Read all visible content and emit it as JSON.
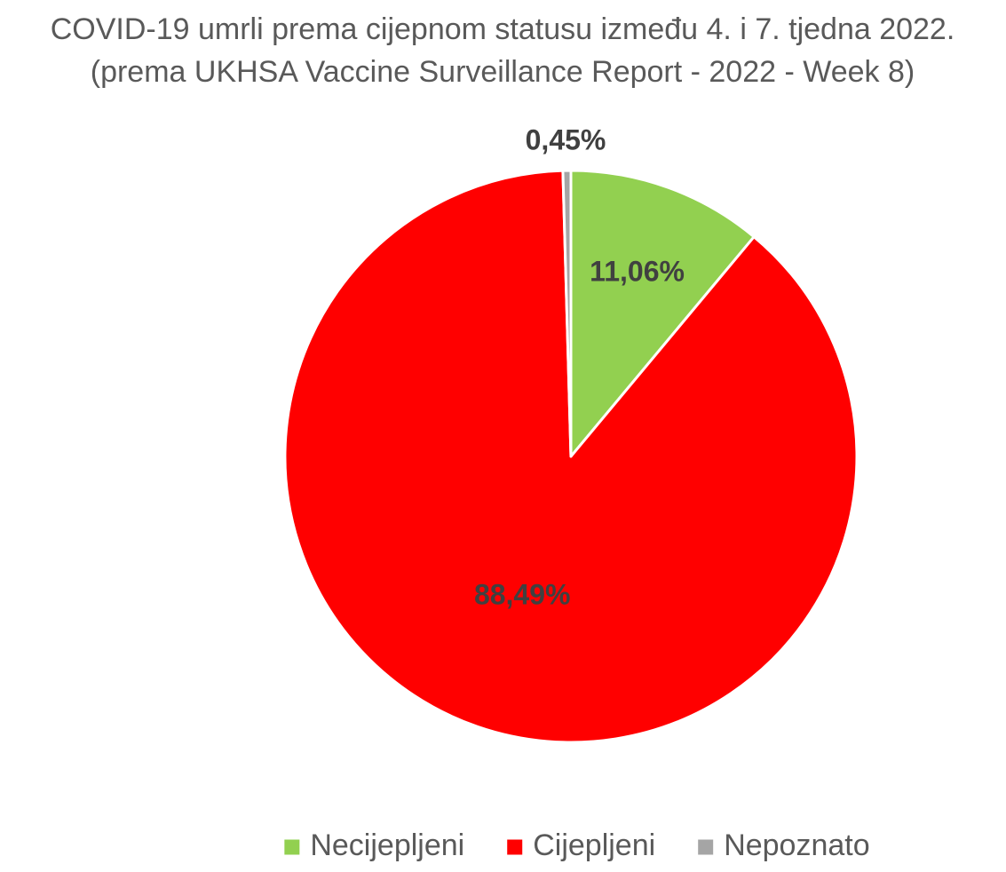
{
  "chart_data": {
    "type": "pie",
    "title": "COVID-19 umrli prema cijepnom statusu između 4. i 7. tjedna 2022.",
    "subtitle": "(prema UKHSA Vaccine Surveillance Report - 2022 - Week 8)",
    "start_angle_deg": 0,
    "direction": "clockwise",
    "legend_position": "bottom",
    "slices": [
      {
        "name": "Necijepljeni",
        "value": 11.06,
        "label": "11,06%",
        "color": "#92D050"
      },
      {
        "name": "Cijepljeni",
        "value": 88.49,
        "label": "88,49%",
        "color": "#FF0000"
      },
      {
        "name": "Nepoznato",
        "value": 0.45,
        "label": "0,45%",
        "color": "#A5A5A5"
      }
    ]
  }
}
